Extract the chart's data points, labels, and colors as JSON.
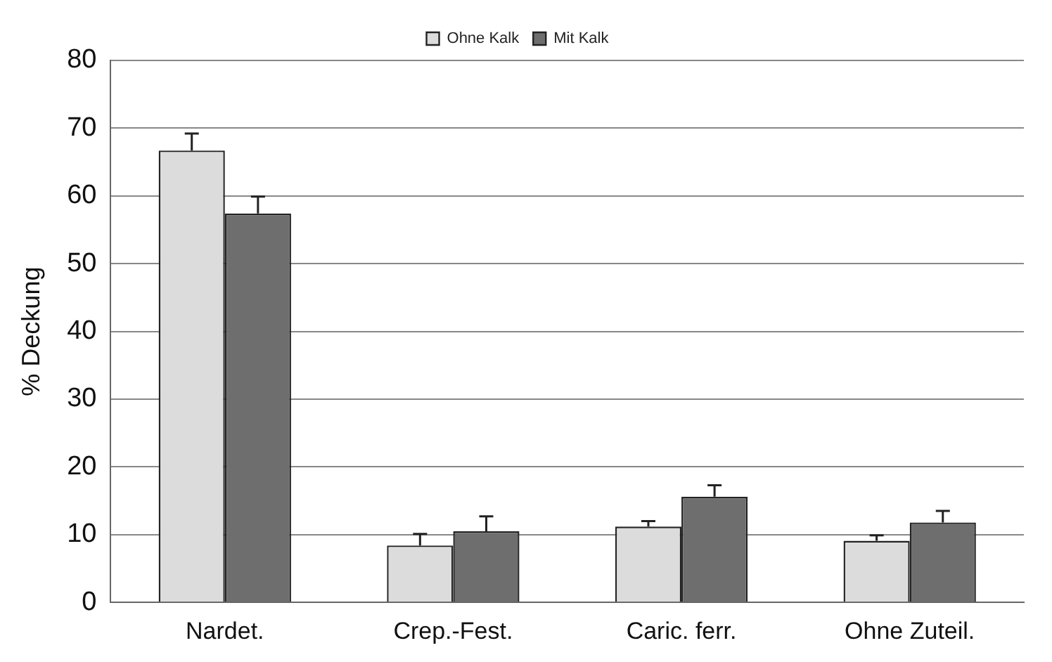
{
  "chart_data": {
    "type": "bar",
    "ylabel": "% Deckung",
    "categories": [
      "Nardet.",
      "Crep.-Fest.",
      "Caric. ferr.",
      "Ohne Zuteil."
    ],
    "series": [
      {
        "name": "Ohne Kalk",
        "color": "#dcdcdc",
        "values": [
          66.7,
          8.4,
          11.2,
          9.1
        ],
        "errors": [
          [
            66.7,
            69.2
          ],
          [
            8.4,
            10.1
          ],
          [
            11.2,
            12.0
          ],
          [
            9.1,
            9.9
          ]
        ]
      },
      {
        "name": "Mit Kalk",
        "color": "#6e6e6e",
        "values": [
          57.4,
          10.5,
          15.6,
          11.8
        ],
        "errors": [
          [
            57.4,
            59.9
          ],
          [
            10.5,
            12.7
          ],
          [
            15.6,
            17.3
          ],
          [
            11.8,
            13.5
          ]
        ]
      }
    ],
    "ylim": [
      0,
      80
    ],
    "yticks": [
      0,
      10,
      20,
      30,
      40,
      50,
      60,
      70,
      80
    ],
    "grid": "y",
    "legend": "top"
  }
}
